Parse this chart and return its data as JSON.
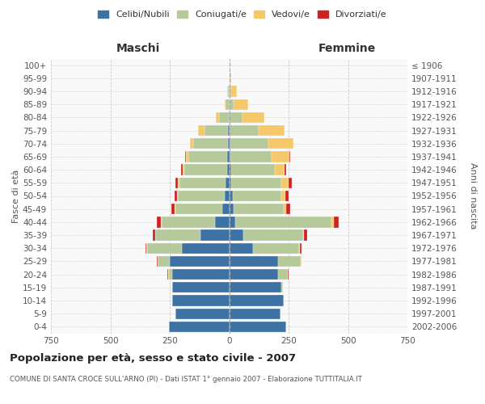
{
  "age_groups": [
    "0-4",
    "5-9",
    "10-14",
    "15-19",
    "20-24",
    "25-29",
    "30-34",
    "35-39",
    "40-44",
    "45-49",
    "50-54",
    "55-59",
    "60-64",
    "65-69",
    "70-74",
    "75-79",
    "80-84",
    "85-89",
    "90-94",
    "95-99",
    "100+"
  ],
  "birth_years": [
    "2002-2006",
    "1997-2001",
    "1992-1996",
    "1987-1991",
    "1982-1986",
    "1977-1981",
    "1972-1976",
    "1967-1971",
    "1962-1966",
    "1957-1961",
    "1952-1956",
    "1947-1951",
    "1942-1946",
    "1937-1941",
    "1932-1936",
    "1927-1931",
    "1922-1926",
    "1917-1921",
    "1912-1916",
    "1907-1911",
    "≤ 1906"
  ],
  "males": {
    "celibi": [
      255,
      225,
      240,
      240,
      240,
      250,
      200,
      120,
      60,
      30,
      20,
      15,
      10,
      8,
      5,
      5,
      2,
      0,
      0,
      0,
      0
    ],
    "coniugati": [
      0,
      0,
      0,
      0,
      15,
      50,
      145,
      190,
      225,
      195,
      195,
      195,
      180,
      165,
      145,
      100,
      40,
      15,
      5,
      0,
      0
    ],
    "vedovi": [
      0,
      0,
      0,
      0,
      2,
      2,
      2,
      2,
      3,
      3,
      3,
      5,
      5,
      8,
      15,
      25,
      15,
      5,
      2,
      0,
      0
    ],
    "divorziati": [
      0,
      0,
      0,
      0,
      3,
      3,
      5,
      8,
      15,
      15,
      12,
      12,
      8,
      5,
      0,
      0,
      0,
      0,
      0,
      0,
      0
    ]
  },
  "females": {
    "nubili": [
      240,
      215,
      230,
      220,
      205,
      205,
      100,
      60,
      25,
      18,
      15,
      10,
      8,
      5,
      5,
      3,
      2,
      0,
      0,
      0,
      0
    ],
    "coniugate": [
      0,
      0,
      0,
      5,
      40,
      95,
      195,
      250,
      405,
      210,
      205,
      210,
      185,
      175,
      160,
      120,
      55,
      20,
      8,
      2,
      0
    ],
    "vedove": [
      0,
      0,
      0,
      0,
      2,
      3,
      3,
      5,
      12,
      12,
      15,
      30,
      40,
      75,
      105,
      110,
      90,
      60,
      25,
      5,
      0
    ],
    "divorziate": [
      0,
      0,
      0,
      0,
      2,
      3,
      8,
      12,
      20,
      18,
      15,
      15,
      8,
      3,
      0,
      0,
      0,
      0,
      0,
      0,
      0
    ]
  },
  "colors": {
    "celibi": "#3d72a4",
    "coniugati": "#b5c99a",
    "vedovi": "#f5c96a",
    "divorziati": "#cc2222"
  },
  "xlim": 750,
  "title": "Popolazione per età, sesso e stato civile - 2007",
  "subtitle": "COMUNE DI SANTA CROCE SULL'ARNO (PI) - Dati ISTAT 1° gennaio 2007 - Elaborazione TUTTITALIA.IT",
  "ylabel_left": "Fasce di età",
  "ylabel_right": "Anni di nascita",
  "legend_labels": [
    "Celibi/Nubili",
    "Coniugati/e",
    "Vedovi/e",
    "Divorziati/e"
  ],
  "header_left": "Maschi",
  "header_right": "Femmine",
  "bar_height": 0.82
}
